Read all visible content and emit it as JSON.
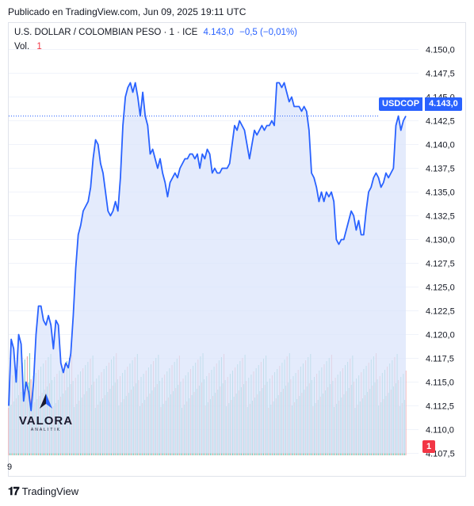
{
  "header": {
    "published": "Publicado en TradingView.com, Jun 09, 2025 19:11 UTC"
  },
  "legend": {
    "symbol": "U.S. DOLLAR / COLOMBIAN PESO · 1 · ICE",
    "last": "4.143,0",
    "change": "−0,5 (−0,01%)",
    "vol_label": "Vol.",
    "vol_value": "1"
  },
  "price_badge": {
    "symbol": "USDCOP",
    "value": "4.143,0"
  },
  "volume_badge": "1",
  "x_axis_label": "9",
  "footer": {
    "brand": "TradingView"
  },
  "watermark": {
    "brand": "VALORA",
    "sub": "ANALITIK"
  },
  "colors": {
    "line": "#2962ff",
    "area": "#dbe4fb",
    "vol_up": "#5fc4b4",
    "vol_down": "#f28e8e",
    "badge": "#2962ff",
    "vol_badge": "#f23645"
  },
  "chart_data": {
    "type": "area",
    "title": "U.S. DOLLAR / COLOMBIAN PESO",
    "ylim": [
      4107.5,
      4151.5
    ],
    "yticks": [
      "4.150,0",
      "4.147,5",
      "4.145,0",
      "4.142,5",
      "4.140,0",
      "4.137,5",
      "4.135,0",
      "4.132,5",
      "4.130,0",
      "4.127,5",
      "4.125,0",
      "4.122,5",
      "4.120,0",
      "4.117,5",
      "4.115,0",
      "4.112,5",
      "4.110,0",
      "4.107,5"
    ],
    "ytick_values": [
      4150,
      4147.5,
      4145,
      4142.5,
      4140,
      4137.5,
      4135,
      4132.5,
      4130,
      4127.5,
      4125,
      4122.5,
      4120,
      4117.5,
      4115,
      4112.5,
      4110,
      4107.5
    ],
    "last_value": 4143.0,
    "series": [
      {
        "values": [
          4112.5,
          4119.5,
          4118.5,
          4115,
          4120,
          4119,
          4113,
          4115,
          4114,
          4112,
          4115,
          4120,
          4123,
          4123,
          4121.5,
          4121,
          4122,
          4121,
          4118.5,
          4121.5,
          4121,
          4117,
          4116,
          4117,
          4116.5,
          4118,
          4122,
          4127,
          4130.5,
          4131.5,
          4133,
          4133.5,
          4134,
          4135.5,
          4138.5,
          4140.5,
          4140,
          4138,
          4137,
          4135,
          4133,
          4132.5,
          4133,
          4134,
          4133,
          4136.5,
          4142,
          4145,
          4146,
          4146.5,
          4145.5,
          4146.5,
          4145,
          4143,
          4145.5,
          4143,
          4142,
          4139,
          4139.5,
          4138.5,
          4137.5,
          4138.5,
          4137,
          4136,
          4134.5,
          4136,
          4136.5,
          4137,
          4136.5,
          4137.5,
          4138,
          4138.5,
          4138.5,
          4139,
          4139,
          4138.5,
          4139,
          4137.5,
          4139,
          4138.5,
          4139.5,
          4139,
          4137,
          4137.5,
          4137,
          4137,
          4137.5,
          4137.5,
          4137.5,
          4138,
          4140,
          4142,
          4141.5,
          4142.5,
          4142,
          4141.5,
          4140,
          4138.5,
          4140,
          4141.5,
          4141,
          4141.5,
          4142,
          4141.5,
          4142,
          4142,
          4142.5,
          4142,
          4146.5,
          4146.5,
          4146,
          4146.5,
          4145.5,
          4144.5,
          4145,
          4144,
          4144,
          4144,
          4143.5,
          4144,
          4143.5,
          4141.5,
          4137,
          4136.5,
          4135.5,
          4134,
          4135,
          4134,
          4135,
          4134.5,
          4135,
          4134,
          4130,
          4129.5,
          4130,
          4130,
          4131,
          4132,
          4133,
          4132.5,
          4131,
          4132,
          4130.5,
          4130.5,
          4133,
          4135,
          4135.5,
          4136.5,
          4137,
          4136.5,
          4135.5,
          4136,
          4137,
          4136.5,
          4137,
          4137.5,
          4142,
          4143,
          4141.5,
          4142.5,
          4143
        ]
      }
    ]
  }
}
